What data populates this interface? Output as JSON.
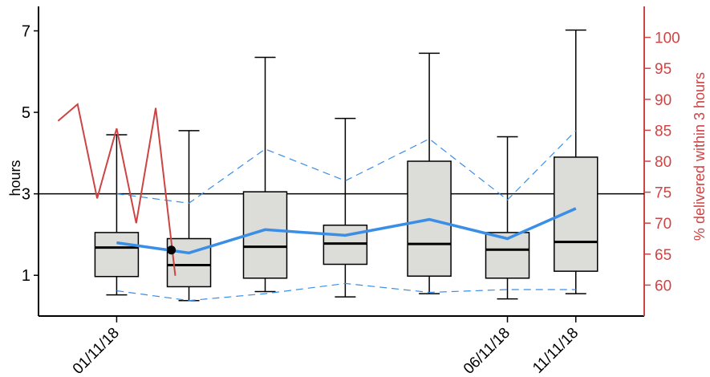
{
  "chart_data": {
    "type": "boxplot",
    "title": "",
    "ylabel": "hours",
    "ylabel_right": "% delivered within 3 hours",
    "ylim": [
      0,
      7.6
    ],
    "y_ticks": [
      1,
      3,
      5,
      7
    ],
    "y2lim": [
      55,
      105
    ],
    "y2_ticks": [
      60,
      65,
      70,
      75,
      80,
      85,
      90,
      95,
      100
    ],
    "xlim": [
      0,
      31
    ],
    "x_tick_labels": [
      {
        "x": 4,
        "label": "01/11/18"
      },
      {
        "x": 24,
        "label": "06/11/18"
      },
      {
        "x": 27.5,
        "label": "11/11/18"
      }
    ],
    "reference_line_hours": 3,
    "boxes": [
      {
        "x": 4,
        "whisker_low": 0.52,
        "q1": 0.97,
        "median": 1.68,
        "q3": 2.05,
        "whisker_high": 4.45
      },
      {
        "x": 7.7,
        "whisker_low": 0.38,
        "q1": 0.72,
        "median": 1.25,
        "q3": 1.9,
        "whisker_high": 4.55
      },
      {
        "x": 11.6,
        "whisker_low": 0.6,
        "q1": 0.93,
        "median": 1.7,
        "q3": 3.05,
        "whisker_high": 6.35
      },
      {
        "x": 15.7,
        "whisker_low": 0.47,
        "q1": 1.27,
        "median": 1.78,
        "q3": 2.23,
        "whisker_high": 4.85
      },
      {
        "x": 20,
        "whisker_low": 0.55,
        "q1": 0.98,
        "median": 1.77,
        "q3": 3.8,
        "whisker_high": 6.45
      },
      {
        "x": 24,
        "whisker_low": 0.42,
        "q1": 0.93,
        "median": 1.63,
        "q3": 2.05,
        "whisker_high": 4.4
      },
      {
        "x": 27.5,
        "whisker_low": 0.55,
        "q1": 1.1,
        "median": 1.82,
        "q3": 3.9,
        "whisker_high": 7.02
      }
    ],
    "mean_line": {
      "x": [
        4,
        7.7,
        11.6,
        15.7,
        20,
        24,
        27.5
      ],
      "y": [
        1.8,
        1.55,
        2.12,
        1.98,
        2.37,
        1.9,
        2.64
      ]
    },
    "upper_band": {
      "x": [
        4,
        7.7,
        11.6,
        15.7,
        20,
        24,
        27.5
      ],
      "y": [
        3.0,
        2.77,
        4.1,
        3.32,
        4.35,
        2.85,
        4.55
      ]
    },
    "lower_band": {
      "x": [
        4,
        7.7,
        11.6,
        15.7,
        20,
        24,
        27.5
      ],
      "y": [
        0.62,
        0.38,
        0.55,
        0.8,
        0.58,
        0.65,
        0.65
      ]
    },
    "percent_line": {
      "x": [
        1,
        2,
        3,
        4,
        5,
        6,
        7
      ],
      "y": [
        86.5,
        89.2,
        74.0,
        85.3,
        70.0,
        88.6,
        61.5
      ]
    },
    "marker_point": {
      "x": 6.8,
      "y": 1.62
    },
    "colors": {
      "box_fill": "#dcdcd8",
      "mean_line": "#3a8ee6",
      "bands": "#3a8ee6",
      "percent_line": "#cc4444",
      "right_axis": "#cc4444",
      "axes": "#000000"
    }
  }
}
